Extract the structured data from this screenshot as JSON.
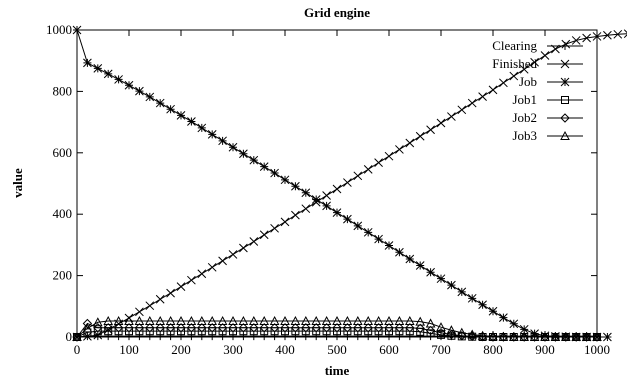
{
  "chart_data": {
    "type": "line",
    "title": "Grid engine",
    "xlabel": "time",
    "ylabel": "value",
    "xlim": [
      0,
      1000
    ],
    "ylim": [
      0,
      1000
    ],
    "xticks": [
      0,
      100,
      200,
      300,
      400,
      500,
      600,
      700,
      800,
      900,
      1000
    ],
    "yticks": [
      0,
      200,
      400,
      600,
      800,
      1000
    ],
    "grid": false,
    "legend_position": "top-right",
    "x_step": 20,
    "series": [
      {
        "name": "Clearing",
        "marker": "plus",
        "values": [
          0,
          3,
          3,
          3,
          3,
          3,
          3,
          3,
          3,
          3,
          3,
          3,
          3,
          3,
          3,
          3,
          3,
          3,
          3,
          3,
          3,
          3,
          3,
          3,
          3,
          3,
          3,
          3,
          3,
          3,
          3,
          3,
          3,
          3,
          3,
          3,
          3,
          3,
          3,
          3,
          3,
          3,
          3,
          3,
          3,
          3,
          3,
          3,
          3,
          3,
          3
        ]
      },
      {
        "name": "Finished",
        "marker": "x",
        "values": [
          0,
          2,
          6,
          24,
          43,
          62,
          82,
          102,
          123,
          143,
          164,
          185,
          206,
          227,
          248,
          269,
          290,
          311,
          333,
          354,
          375,
          397,
          418,
          439,
          461,
          482,
          503,
          525,
          546,
          568,
          589,
          611,
          632,
          654,
          675,
          697,
          718,
          740,
          762,
          783,
          805,
          828,
          850,
          872,
          895,
          917,
          938,
          954,
          966,
          974,
          979,
          983,
          986,
          988,
          990,
          992,
          994,
          995,
          996,
          997,
          998,
          999,
          999,
          1000,
          1000,
          1000,
          1000,
          1000,
          1000,
          1000,
          1000
        ]
      },
      {
        "name": "Job",
        "marker": "star",
        "values": [
          1000,
          893,
          875,
          857,
          839,
          820,
          801,
          782,
          762,
          742,
          722,
          702,
          681,
          660,
          639,
          618,
          597,
          576,
          555,
          534,
          512,
          491,
          470,
          448,
          427,
          405,
          384,
          362,
          341,
          319,
          298,
          276,
          254,
          233,
          211,
          190,
          169,
          147,
          126,
          105,
          84,
          63,
          43,
          25,
          11,
          4,
          2,
          1,
          0,
          0,
          0,
          0
        ]
      },
      {
        "name": "Job1",
        "marker": "square",
        "values": [
          0,
          15,
          19,
          19,
          19,
          19,
          19,
          19,
          19,
          19,
          19,
          19,
          19,
          19,
          19,
          19,
          19,
          19,
          19,
          19,
          19,
          19,
          19,
          19,
          19,
          19,
          19,
          19,
          19,
          19,
          19,
          19,
          19,
          17,
          12,
          7,
          4,
          2,
          1,
          0,
          0,
          0,
          0,
          0,
          0,
          0,
          0,
          0,
          0,
          0,
          0
        ]
      },
      {
        "name": "Job2",
        "marker": "diamond",
        "values": [
          0,
          44,
          30,
          30,
          30,
          30,
          30,
          30,
          30,
          30,
          30,
          30,
          30,
          30,
          30,
          30,
          30,
          30,
          30,
          30,
          30,
          30,
          30,
          30,
          30,
          30,
          30,
          30,
          30,
          30,
          30,
          30,
          30,
          28,
          21,
          14,
          8,
          4,
          2,
          1,
          0,
          0,
          0,
          0,
          0,
          0,
          0,
          0,
          0,
          0,
          0
        ]
      },
      {
        "name": "Job3",
        "marker": "triangle",
        "values": [
          0,
          28,
          48,
          52,
          52,
          52,
          52,
          52,
          52,
          52,
          52,
          52,
          52,
          52,
          52,
          52,
          52,
          52,
          52,
          52,
          52,
          52,
          52,
          52,
          52,
          52,
          52,
          52,
          52,
          52,
          52,
          52,
          52,
          50,
          44,
          32,
          22,
          14,
          8,
          4,
          2,
          1,
          0,
          0,
          0,
          0,
          0,
          0,
          0,
          0,
          0
        ]
      }
    ]
  }
}
